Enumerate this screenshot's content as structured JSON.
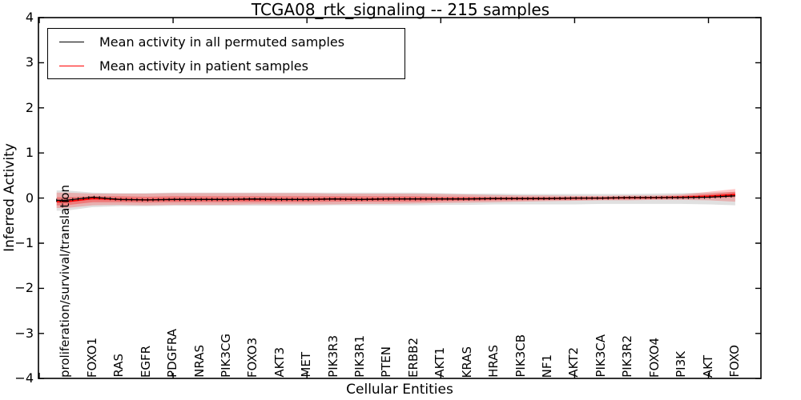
{
  "chart_data": {
    "type": "line",
    "title": "TCGA08_rtk_signaling -- 215 samples",
    "xlabel": "Cellular Entities",
    "ylabel": "Inferred Activity",
    "ylim": [
      -4,
      4
    ],
    "yticks": [
      4,
      3,
      2,
      1,
      0,
      -1,
      -2,
      -3,
      -4
    ],
    "x_major_tick_units": [
      0,
      5,
      10,
      15,
      20,
      25
    ],
    "grid": false,
    "categories": [
      "proliferation/survival/translation",
      "FOXO1",
      "RAS",
      "EGFR",
      "PDGFRA",
      "NRAS",
      "PIK3CG",
      "FOXO3",
      "AKT3",
      "MET",
      "PIK3R3",
      "PIK3R1",
      "PTEN",
      "ERBB2",
      "AKT1",
      "KRAS",
      "HRAS",
      "PIK3CB",
      "NF1",
      "AKT2",
      "PIK3CA",
      "PIK3R2",
      "FOXO4",
      "PI3K",
      "AKT",
      "FOXO"
    ],
    "series": [
      {
        "name": "Mean activity in all permuted samples",
        "color": "#000000",
        "values": [
          -0.05,
          0.02,
          -0.03,
          -0.04,
          -0.03,
          -0.03,
          -0.03,
          -0.02,
          -0.03,
          -0.03,
          -0.02,
          -0.03,
          -0.02,
          -0.02,
          -0.02,
          -0.02,
          -0.01,
          -0.01,
          -0.01,
          0.0,
          0.0,
          0.01,
          0.01,
          0.01,
          0.02,
          0.05
        ]
      },
      {
        "name": "Mean activity in patient samples",
        "color": "#ff0000",
        "values": [
          -0.08,
          -0.01,
          -0.03,
          -0.04,
          -0.03,
          -0.03,
          -0.03,
          -0.03,
          -0.03,
          -0.03,
          -0.02,
          -0.03,
          -0.02,
          -0.02,
          -0.02,
          -0.02,
          -0.01,
          -0.01,
          -0.01,
          0.0,
          0.0,
          0.01,
          0.01,
          0.02,
          0.04,
          0.08
        ]
      }
    ],
    "bands": [
      {
        "name": "permuted-sample-range",
        "color": "#999999",
        "opacity": 0.3,
        "upper": [
          0.17,
          0.12,
          0.11,
          0.11,
          0.12,
          0.12,
          0.12,
          0.12,
          0.12,
          0.12,
          0.12,
          0.12,
          0.12,
          0.12,
          0.11,
          0.1,
          0.1,
          0.09,
          0.09,
          0.09,
          0.09,
          0.09,
          0.1,
          0.11,
          0.12,
          0.14
        ],
        "lower": [
          -0.28,
          -0.2,
          -0.18,
          -0.18,
          -0.17,
          -0.17,
          -0.17,
          -0.17,
          -0.17,
          -0.17,
          -0.16,
          -0.16,
          -0.16,
          -0.16,
          -0.15,
          -0.15,
          -0.14,
          -0.14,
          -0.14,
          -0.14,
          -0.13,
          -0.13,
          -0.13,
          -0.13,
          -0.14,
          -0.16
        ]
      },
      {
        "name": "patient-sample-range-outer",
        "color": "#ff0000",
        "opacity": 0.22,
        "upper": [
          0.12,
          0.1,
          0.1,
          0.1,
          0.11,
          0.11,
          0.11,
          0.11,
          0.11,
          0.11,
          0.1,
          0.1,
          0.1,
          0.1,
          0.09,
          0.08,
          0.07,
          0.06,
          0.06,
          0.05,
          0.05,
          0.06,
          0.06,
          0.08,
          0.14,
          0.2
        ],
        "lower": [
          -0.22,
          -0.16,
          -0.15,
          -0.16,
          -0.15,
          -0.15,
          -0.15,
          -0.14,
          -0.14,
          -0.14,
          -0.14,
          -0.13,
          -0.13,
          -0.12,
          -0.11,
          -0.1,
          -0.09,
          -0.08,
          -0.07,
          -0.06,
          -0.05,
          -0.05,
          -0.04,
          -0.04,
          -0.05,
          -0.08
        ],
        "legend": false
      },
      {
        "name": "patient-sample-range-inner",
        "color": "#ff0000",
        "opacity": 0.3,
        "upper": [
          0.02,
          0.04,
          0.04,
          0.03,
          0.04,
          0.04,
          0.04,
          0.04,
          0.04,
          0.04,
          0.04,
          0.04,
          0.04,
          0.04,
          0.03,
          0.03,
          0.02,
          0.02,
          0.02,
          0.02,
          0.02,
          0.03,
          0.03,
          0.05,
          0.09,
          0.14
        ],
        "lower": [
          -0.16,
          -0.09,
          -0.09,
          -0.1,
          -0.09,
          -0.09,
          -0.09,
          -0.09,
          -0.09,
          -0.09,
          -0.08,
          -0.08,
          -0.08,
          -0.08,
          -0.07,
          -0.06,
          -0.05,
          -0.05,
          -0.04,
          -0.04,
          -0.03,
          -0.03,
          -0.02,
          -0.01,
          0.0,
          0.02
        ]
      }
    ],
    "legend": {
      "position": "upper-left",
      "entries": [
        {
          "label": "Mean activity in all permuted samples",
          "color": "#000000"
        },
        {
          "label": "Mean activity in patient samples",
          "color": "#ff0000"
        }
      ]
    }
  }
}
